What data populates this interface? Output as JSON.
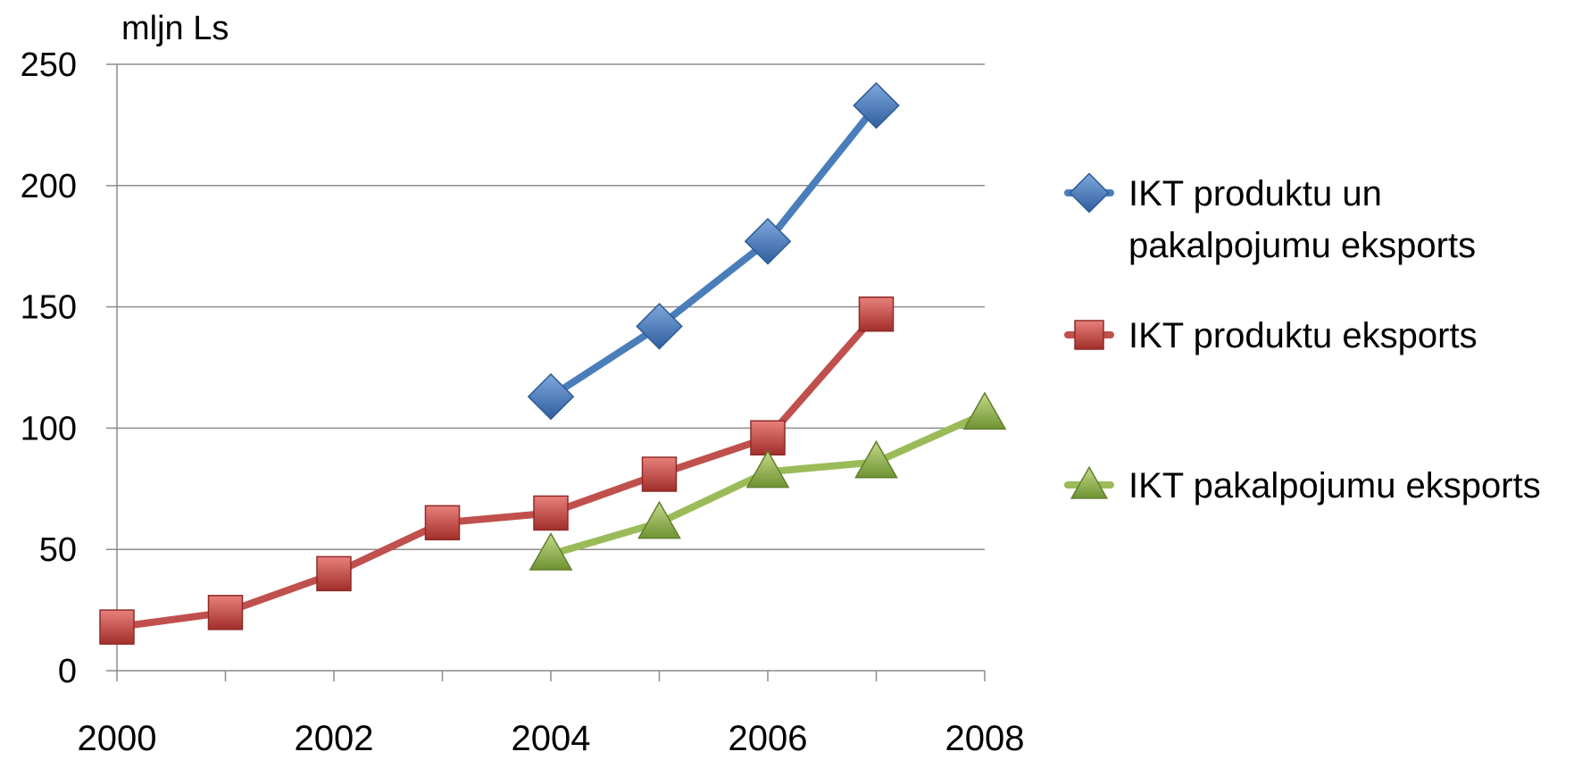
{
  "chart_data": {
    "type": "line",
    "title": "",
    "ylabel": "mljn Ls",
    "xlabel": "",
    "x": [
      2000,
      2001,
      2002,
      2003,
      2004,
      2005,
      2006,
      2007,
      2008
    ],
    "x_ticks": [
      "2000",
      "2002",
      "2004",
      "2006",
      "2008"
    ],
    "y_ticks": [
      "0",
      "50",
      "100",
      "150",
      "200",
      "250"
    ],
    "xlim": [
      2000,
      2008
    ],
    "ylim": [
      0,
      250
    ],
    "grid": "horizontal",
    "legend_position": "right",
    "series": [
      {
        "name_lines": [
          "IKT produktu un",
          "pakalpojumu eksports"
        ],
        "marker": "diamond",
        "color": "#4A7EBB",
        "values": [
          null,
          null,
          null,
          null,
          113,
          142,
          177,
          233,
          null
        ]
      },
      {
        "name_lines": [
          "IKT produktu eksports"
        ],
        "marker": "square",
        "color": "#C0504D",
        "values": [
          18,
          24,
          40,
          61,
          65,
          81,
          96,
          147,
          null
        ]
      },
      {
        "name_lines": [
          "IKT pakalpojumu eksports"
        ],
        "marker": "triangle",
        "color": "#9BBB59",
        "values": [
          null,
          null,
          null,
          null,
          48,
          61,
          82,
          86,
          106
        ]
      }
    ]
  }
}
